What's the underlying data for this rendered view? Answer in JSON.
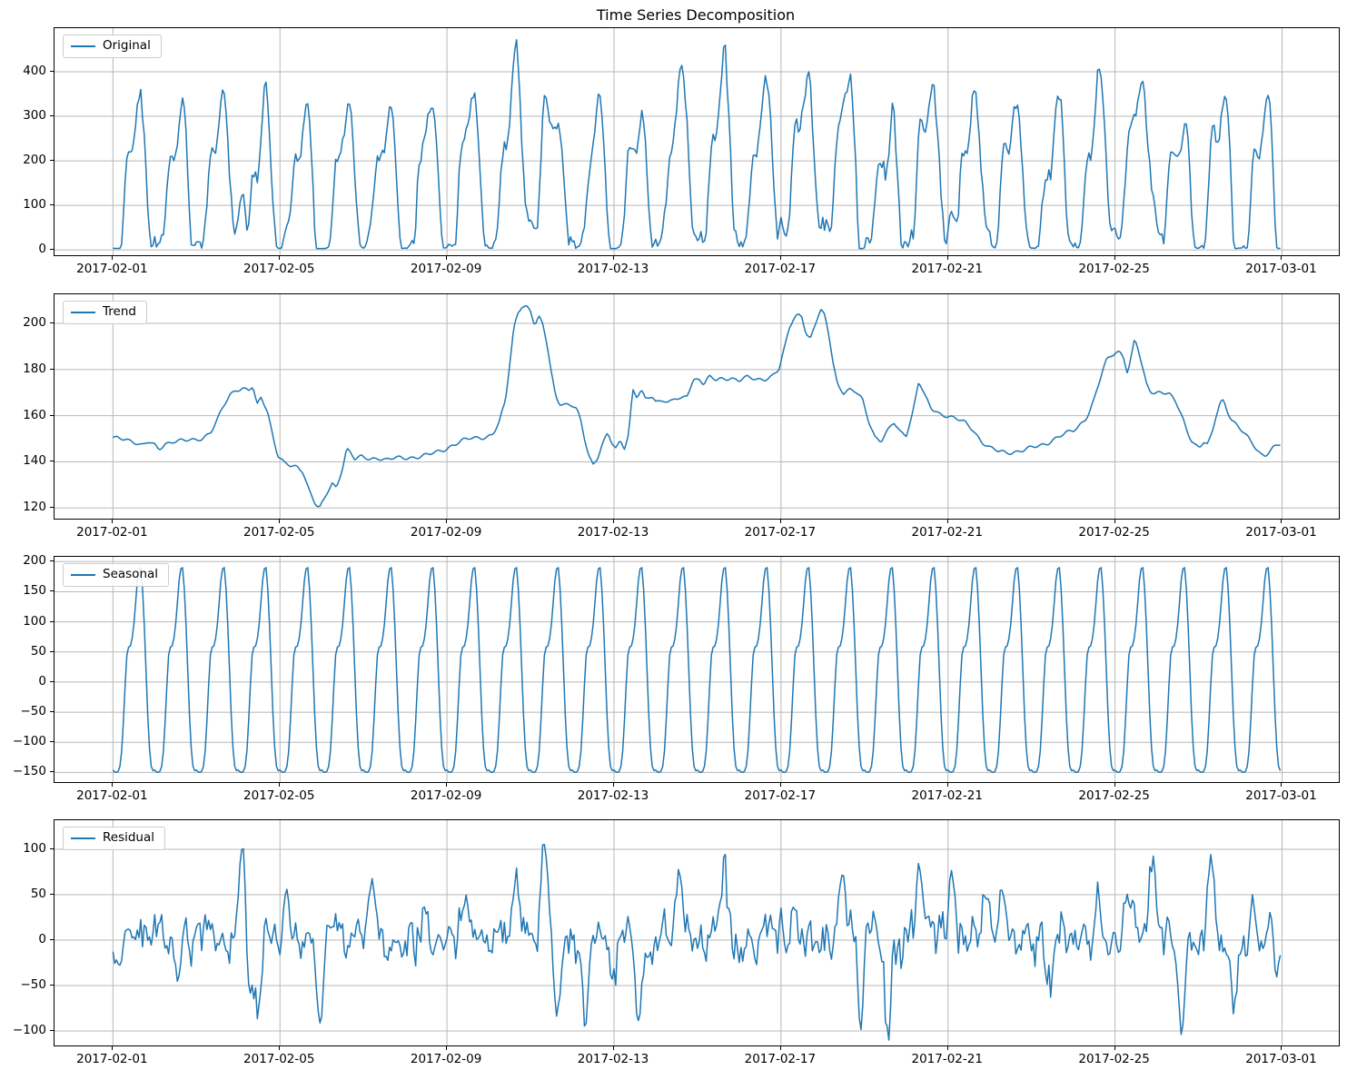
{
  "title": "Time Series Decomposition",
  "colors": {
    "line": "#1f77b4",
    "grid": "#b8b8b8",
    "spine": "#000000",
    "background": "#ffffff",
    "legend_border": "#cccccc",
    "tick_text": "#000000"
  },
  "x_axis": {
    "tick_labels": [
      "2017-02-01",
      "2017-02-05",
      "2017-02-09",
      "2017-02-13",
      "2017-02-17",
      "2017-02-21",
      "2017-02-25",
      "2017-03-01"
    ],
    "tick_days": [
      0,
      4,
      8,
      12,
      16,
      20,
      24,
      28
    ]
  },
  "panels": [
    {
      "legend_label": "Original",
      "yticks": [
        0,
        100,
        200,
        300,
        400
      ],
      "ylim": [
        -12,
        498
      ]
    },
    {
      "legend_label": "Trend",
      "yticks": [
        120,
        140,
        160,
        180,
        200
      ],
      "ylim": [
        115.4,
        212.6
      ]
    },
    {
      "legend_label": "Seasonal",
      "yticks": [
        -150,
        -100,
        -50,
        0,
        50,
        100,
        150,
        200
      ],
      "ylim": [
        -166,
        208
      ]
    },
    {
      "legend_label": "Residual",
      "yticks": [
        -100,
        -50,
        0,
        50,
        100
      ],
      "ylim": [
        -116,
        132
      ]
    }
  ],
  "chart_data": {
    "type": "line",
    "title": "Time Series Decomposition",
    "x_unit": "hours, 2017-02-01 00:00 to 2017-02-28 23:00",
    "n_points": 672,
    "xlim_days": [
      -1.4,
      29.36
    ],
    "grid": true,
    "legend_position": "upper-left",
    "series": [
      {
        "name": "Original",
        "derivation": "trend + seasonal + residual",
        "soft_floor": 20,
        "observed_range": [
          0,
          465
        ]
      },
      {
        "name": "Trend",
        "observed_range": [
          120,
          208
        ],
        "keypoints": [
          [
            0.04,
            150
          ],
          [
            0.3,
            150
          ],
          [
            0.5,
            149
          ],
          [
            0.7,
            147
          ],
          [
            0.85,
            148.5
          ],
          [
            1.0,
            147
          ],
          [
            1.1,
            145.5
          ],
          [
            1.25,
            148
          ],
          [
            1.45,
            149
          ],
          [
            1.7,
            149
          ],
          [
            1.95,
            149.5
          ],
          [
            2.15,
            150.5
          ],
          [
            2.35,
            153
          ],
          [
            2.5,
            158
          ],
          [
            2.65,
            164
          ],
          [
            2.8,
            169
          ],
          [
            2.95,
            171.5
          ],
          [
            3.1,
            172
          ],
          [
            3.25,
            171
          ],
          [
            3.35,
            172.5
          ],
          [
            3.45,
            164
          ],
          [
            3.55,
            168
          ],
          [
            3.7,
            162
          ],
          [
            3.85,
            150
          ],
          [
            3.95,
            143
          ],
          [
            4.1,
            139.5
          ],
          [
            4.25,
            138
          ],
          [
            4.4,
            137.5
          ],
          [
            4.55,
            136
          ],
          [
            4.7,
            128
          ],
          [
            4.85,
            122
          ],
          [
            4.95,
            120
          ],
          [
            5.05,
            123
          ],
          [
            5.15,
            127
          ],
          [
            5.25,
            130.5
          ],
          [
            5.35,
            128.5
          ],
          [
            5.5,
            138
          ],
          [
            5.6,
            146
          ],
          [
            5.7,
            144
          ],
          [
            5.8,
            141
          ],
          [
            5.95,
            142
          ],
          [
            6.15,
            141
          ],
          [
            6.35,
            142
          ],
          [
            6.55,
            141
          ],
          [
            6.75,
            141.5
          ],
          [
            6.95,
            141.5
          ],
          [
            7.15,
            142
          ],
          [
            7.35,
            142.5
          ],
          [
            7.55,
            143
          ],
          [
            7.75,
            144
          ],
          [
            7.95,
            145.5
          ],
          [
            8.15,
            147.5
          ],
          [
            8.35,
            149
          ],
          [
            8.55,
            150
          ],
          [
            8.75,
            150.5
          ],
          [
            8.95,
            151
          ],
          [
            9.1,
            152
          ],
          [
            9.25,
            157
          ],
          [
            9.4,
            166
          ],
          [
            9.5,
            182
          ],
          [
            9.6,
            198
          ],
          [
            9.7,
            205
          ],
          [
            9.8,
            208
          ],
          [
            9.9,
            207.5
          ],
          [
            10.0,
            205
          ],
          [
            10.1,
            199
          ],
          [
            10.2,
            202.5
          ],
          [
            10.3,
            199
          ],
          [
            10.4,
            191
          ],
          [
            10.5,
            179
          ],
          [
            10.6,
            169
          ],
          [
            10.7,
            165.5
          ],
          [
            10.85,
            164.5
          ],
          [
            11.0,
            164
          ],
          [
            11.1,
            163
          ],
          [
            11.2,
            158
          ],
          [
            11.3,
            150
          ],
          [
            11.4,
            143
          ],
          [
            11.5,
            139
          ],
          [
            11.6,
            141.5
          ],
          [
            11.7,
            146.5
          ],
          [
            11.85,
            152
          ],
          [
            11.95,
            148
          ],
          [
            12.05,
            145.5
          ],
          [
            12.15,
            149.5
          ],
          [
            12.25,
            146.5
          ],
          [
            12.35,
            152
          ],
          [
            12.45,
            171.5
          ],
          [
            12.55,
            168
          ],
          [
            12.65,
            170.5
          ],
          [
            12.75,
            167
          ],
          [
            12.9,
            168.5
          ],
          [
            13.0,
            166
          ],
          [
            13.15,
            167.5
          ],
          [
            13.3,
            165.5
          ],
          [
            13.45,
            167.5
          ],
          [
            13.6,
            166.5
          ],
          [
            13.75,
            169
          ],
          [
            13.9,
            175.5
          ],
          [
            14.05,
            176.5
          ],
          [
            14.15,
            173.5
          ],
          [
            14.3,
            177
          ],
          [
            14.45,
            175
          ],
          [
            14.6,
            176
          ],
          [
            14.8,
            176.5
          ],
          [
            15.0,
            175.5
          ],
          [
            15.2,
            176.5
          ],
          [
            15.4,
            175.5
          ],
          [
            15.6,
            176
          ],
          [
            15.8,
            177.5
          ],
          [
            15.95,
            180
          ],
          [
            16.1,
            190
          ],
          [
            16.2,
            198
          ],
          [
            16.3,
            202
          ],
          [
            16.4,
            204
          ],
          [
            16.5,
            203.5
          ],
          [
            16.6,
            196
          ],
          [
            16.7,
            193
          ],
          [
            16.85,
            201
          ],
          [
            16.95,
            205.5
          ],
          [
            17.05,
            203
          ],
          [
            17.15,
            195
          ],
          [
            17.25,
            183
          ],
          [
            17.35,
            174
          ],
          [
            17.5,
            170
          ],
          [
            17.65,
            171
          ],
          [
            17.8,
            170
          ],
          [
            17.95,
            167
          ],
          [
            18.1,
            158
          ],
          [
            18.25,
            151
          ],
          [
            18.4,
            149
          ],
          [
            18.55,
            153
          ],
          [
            18.7,
            157
          ],
          [
            18.85,
            153
          ],
          [
            19.0,
            152
          ],
          [
            19.15,
            161
          ],
          [
            19.3,
            175
          ],
          [
            19.45,
            168
          ],
          [
            19.6,
            163
          ],
          [
            19.8,
            161
          ],
          [
            20.0,
            160
          ],
          [
            20.2,
            158.5
          ],
          [
            20.4,
            157
          ],
          [
            20.6,
            154
          ],
          [
            20.8,
            149
          ],
          [
            21.0,
            146
          ],
          [
            21.2,
            144.5
          ],
          [
            21.4,
            144
          ],
          [
            21.6,
            144.5
          ],
          [
            21.8,
            145
          ],
          [
            22.0,
            146
          ],
          [
            22.2,
            147
          ],
          [
            22.4,
            148.5
          ],
          [
            22.6,
            150.5
          ],
          [
            22.8,
            152
          ],
          [
            23.0,
            153.5
          ],
          [
            23.1,
            155
          ],
          [
            23.2,
            157
          ],
          [
            23.3,
            159
          ],
          [
            23.4,
            162.5
          ],
          [
            23.5,
            167
          ],
          [
            23.6,
            173
          ],
          [
            23.7,
            179
          ],
          [
            23.8,
            184
          ],
          [
            23.9,
            186
          ],
          [
            24.0,
            187.5
          ],
          [
            24.1,
            188
          ],
          [
            24.2,
            186
          ],
          [
            24.3,
            178.5
          ],
          [
            24.4,
            186
          ],
          [
            24.47,
            193
          ],
          [
            24.55,
            189
          ],
          [
            24.65,
            181
          ],
          [
            24.75,
            174
          ],
          [
            24.85,
            171
          ],
          [
            24.95,
            170
          ],
          [
            25.1,
            170.5
          ],
          [
            25.3,
            169
          ],
          [
            25.45,
            166
          ],
          [
            25.6,
            160
          ],
          [
            25.72,
            154
          ],
          [
            25.82,
            150
          ],
          [
            25.92,
            147.5
          ],
          [
            26.02,
            146
          ],
          [
            26.12,
            148.5
          ],
          [
            26.22,
            147
          ],
          [
            26.32,
            152
          ],
          [
            26.42,
            160
          ],
          [
            26.52,
            166
          ],
          [
            26.6,
            167
          ],
          [
            26.7,
            162
          ],
          [
            26.8,
            158
          ],
          [
            26.9,
            156
          ],
          [
            27.0,
            154
          ],
          [
            27.1,
            152
          ],
          [
            27.2,
            150
          ],
          [
            27.3,
            148
          ],
          [
            27.4,
            145.5
          ],
          [
            27.5,
            143.5
          ],
          [
            27.6,
            143
          ],
          [
            27.7,
            144.5
          ],
          [
            27.8,
            146
          ],
          [
            27.9,
            147
          ],
          [
            27.97,
            147.5
          ]
        ]
      },
      {
        "name": "Seasonal",
        "observed_range": [
          -150,
          190
        ],
        "period_hours": 24,
        "daily_pattern_by_hour": [
          -146,
          -149,
          -150,
          -148,
          -140,
          -115,
          -65,
          -5,
          45,
          58,
          60,
          72,
          95,
          130,
          168,
          188,
          190,
          155,
          95,
          20,
          -55,
          -110,
          -140,
          -147
        ]
      },
      {
        "name": "Residual",
        "observed_range": [
          -105,
          122
        ],
        "model": {
          "type": "ar1-noise-with-spikes",
          "rho": 0.5,
          "sigma": 12,
          "seed": 77741,
          "spike_width_days": 0.07,
          "spikes": [
            [
              0.1,
              -40
            ],
            [
              1.55,
              -58
            ],
            [
              2.2,
              30
            ],
            [
              3.1,
              105
            ],
            [
              3.3,
              -70
            ],
            [
              3.5,
              -66
            ],
            [
              4.2,
              45
            ],
            [
              4.95,
              -88
            ],
            [
              5.3,
              32
            ],
            [
              6.2,
              57
            ],
            [
              7.5,
              44
            ],
            [
              8.45,
              47
            ],
            [
              9.67,
              78
            ],
            [
              10.35,
              122
            ],
            [
              10.62,
              -70
            ],
            [
              11.3,
              -88
            ],
            [
              12.0,
              -42
            ],
            [
              12.57,
              -93
            ],
            [
              13.54,
              88
            ],
            [
              14.65,
              80
            ],
            [
              15.4,
              -42
            ],
            [
              16.3,
              45
            ],
            [
              17.45,
              100
            ],
            [
              17.9,
              -85
            ],
            [
              18.55,
              -105
            ],
            [
              19.3,
              78
            ],
            [
              20.1,
              70
            ],
            [
              20.9,
              52
            ],
            [
              21.3,
              50
            ],
            [
              22.45,
              -52
            ],
            [
              23.6,
              70
            ],
            [
              24.3,
              72
            ],
            [
              24.9,
              86
            ],
            [
              25.6,
              -98
            ],
            [
              26.3,
              70
            ],
            [
              26.85,
              -58
            ],
            [
              27.3,
              45
            ],
            [
              27.88,
              -45
            ]
          ]
        }
      }
    ]
  }
}
